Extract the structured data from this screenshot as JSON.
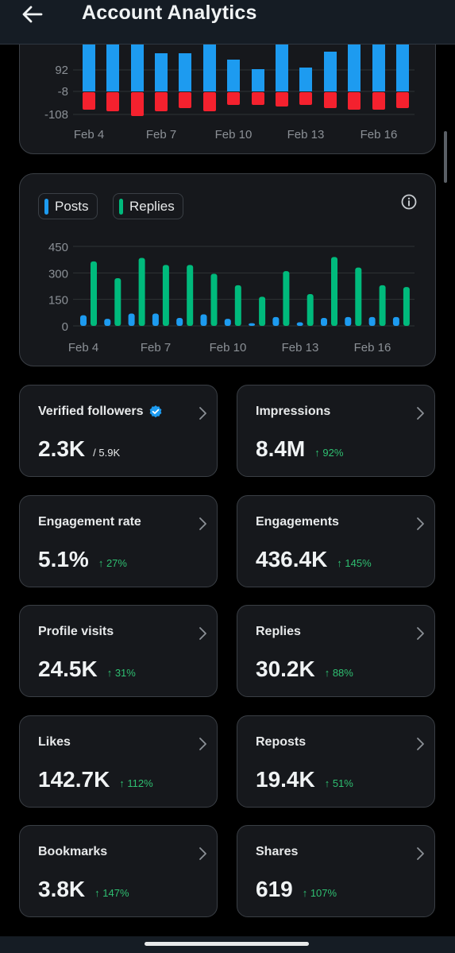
{
  "header": {
    "title": "Account Analytics"
  },
  "chart_top": {
    "type": "bar",
    "yticks": [
      "92",
      "-8",
      "-108"
    ],
    "xticks": [
      "Feb 4",
      "Feb 7",
      "Feb 10",
      "Feb 13",
      "Feb 16"
    ],
    "colors": {
      "positive": "#1d9bf0",
      "negative": "#f4212e"
    }
  },
  "chart_data": {
    "type": "bar",
    "legend": [
      "Posts",
      "Replies"
    ],
    "colors": {
      "Posts": "#1d9bf0",
      "Replies": "#00ba7c"
    },
    "yticks": [
      "450",
      "300",
      "150",
      "0"
    ],
    "ylim": [
      0,
      450
    ],
    "xticks": [
      "Feb 4",
      "Feb 7",
      "Feb 10",
      "Feb 13",
      "Feb 16"
    ],
    "categories": [
      "Feb 4",
      "Feb 5",
      "Feb 6",
      "Feb 7",
      "Feb 8",
      "Feb 9",
      "Feb 10",
      "Feb 11",
      "Feb 12",
      "Feb 13",
      "Feb 14",
      "Feb 15",
      "Feb 16",
      "Feb 17"
    ],
    "series": [
      {
        "name": "Posts",
        "values": [
          60,
          40,
          70,
          70,
          45,
          65,
          40,
          15,
          50,
          20,
          45,
          50,
          50,
          50
        ]
      },
      {
        "name": "Replies",
        "values": [
          365,
          270,
          385,
          345,
          345,
          295,
          230,
          165,
          310,
          180,
          390,
          330,
          230,
          220
        ]
      }
    ]
  },
  "metrics": [
    {
      "label": "Verified followers",
      "value": "2.3K",
      "sub": "/ 5.9K",
      "change": ""
    },
    {
      "label": "Impressions",
      "value": "8.4M",
      "sub": "",
      "change": "↑ 92%"
    },
    {
      "label": "Engagement rate",
      "value": "5.1%",
      "sub": "",
      "change": "↑ 27%"
    },
    {
      "label": "Engagements",
      "value": "436.4K",
      "sub": "",
      "change": "↑ 145%"
    },
    {
      "label": "Profile visits",
      "value": "24.5K",
      "sub": "",
      "change": "↑ 31%"
    },
    {
      "label": "Replies",
      "value": "30.2K",
      "sub": "",
      "change": "↑ 88%"
    },
    {
      "label": "Likes",
      "value": "142.7K",
      "sub": "",
      "change": "↑ 112%"
    },
    {
      "label": "Reposts",
      "value": "19.4K",
      "sub": "",
      "change": "↑ 51%"
    },
    {
      "label": "Bookmarks",
      "value": "3.8K",
      "sub": "",
      "change": "↑ 147%"
    },
    {
      "label": "Shares",
      "value": "619",
      "sub": "",
      "change": "↑ 107%"
    }
  ]
}
